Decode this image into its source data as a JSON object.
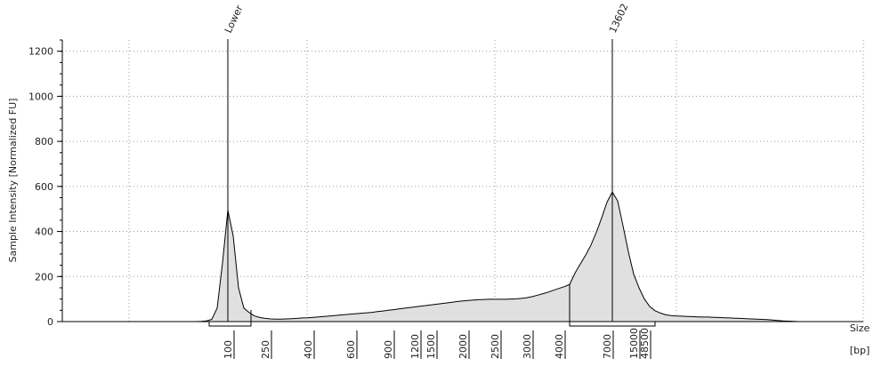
{
  "chart_data": {
    "type": "area",
    "ylabel": "Sample Intensity [Normalized FU]",
    "xlabel": [
      "Size",
      "[bp]"
    ],
    "ylim": [
      0,
      1250
    ],
    "yticks": [
      0,
      200,
      400,
      600,
      800,
      1000,
      1200
    ],
    "grid": true,
    "color": "#000000",
    "fill": "#e0e0e0",
    "annotations": [
      "Lower",
      "13602"
    ],
    "categories": [
      null,
      null,
      null,
      null,
      null,
      null,
      null,
      null,
      null,
      null,
      null,
      null,
      null,
      null,
      null,
      null,
      null,
      null,
      null,
      null,
      null,
      null,
      null,
      null,
      null,
      null,
      null,
      null,
      null,
      null,
      null,
      "100",
      null,
      null,
      null,
      null,
      null,
      null,
      "250",
      null,
      null,
      null,
      null,
      null,
      null,
      null,
      "400",
      null,
      null,
      null,
      null,
      null,
      null,
      null,
      "600",
      null,
      null,
      null,
      null,
      null,
      null,
      "900",
      null,
      null,
      null,
      null,
      "1200",
      null,
      null,
      "1500",
      null,
      null,
      null,
      null,
      null,
      "2000",
      null,
      null,
      null,
      null,
      null,
      "2500",
      null,
      null,
      null,
      null,
      null,
      "3000",
      null,
      null,
      null,
      null,
      null,
      "4000",
      null,
      null,
      null,
      null,
      null,
      null,
      null,
      null,
      "7000",
      null,
      null,
      null,
      null,
      "15000",
      null,
      "48500",
      null,
      null,
      null,
      null,
      null,
      null,
      null,
      null,
      null,
      null,
      null,
      null,
      null,
      null,
      null,
      null,
      null,
      null,
      null,
      null,
      null,
      null,
      null,
      null,
      null,
      null,
      null,
      null,
      null,
      null,
      null,
      null,
      null,
      null,
      null,
      null,
      null,
      null,
      null,
      null,
      null
    ],
    "values": [
      0,
      0,
      0,
      0,
      0,
      0,
      0,
      0,
      0,
      0,
      0,
      0,
      0,
      0,
      0,
      0,
      0,
      0,
      0,
      0,
      0,
      0,
      0,
      0,
      0,
      0,
      1,
      3,
      10,
      60,
      260,
      495,
      380,
      150,
      60,
      40,
      25,
      18,
      14,
      12,
      11,
      11,
      12,
      13,
      14,
      16,
      17,
      19,
      21,
      23,
      25,
      27,
      29,
      31,
      33,
      35,
      37,
      39,
      41,
      44,
      47,
      50,
      53,
      56,
      59,
      62,
      65,
      68,
      71,
      74,
      77,
      80,
      83,
      86,
      89,
      92,
      94,
      96,
      97,
      98,
      99,
      99,
      99,
      99,
      100,
      101,
      103,
      106,
      111,
      117,
      124,
      131,
      139,
      147,
      155,
      165,
      215,
      255,
      295,
      340,
      396,
      460,
      530,
      575,
      535,
      425,
      310,
      210,
      150,
      100,
      67,
      48,
      38,
      30,
      27,
      25,
      24,
      23,
      22,
      21,
      20,
      20,
      19,
      18,
      17,
      16,
      15,
      14,
      13,
      12,
      11,
      10,
      9,
      7,
      5,
      3,
      2,
      1,
      0,
      0,
      0,
      0,
      0,
      0,
      0,
      0,
      0,
      0,
      0,
      0,
      0
    ]
  }
}
